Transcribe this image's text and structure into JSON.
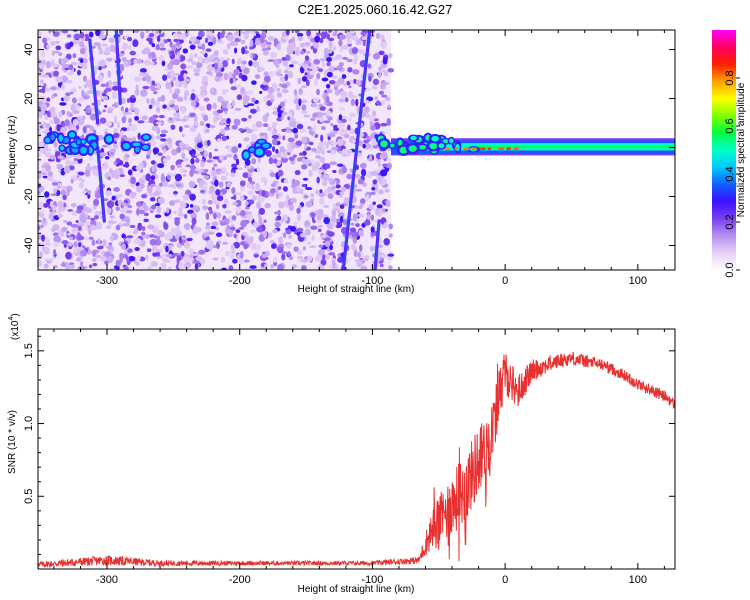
{
  "figure": {
    "title": "C2E1.2025.060.16.42.G27"
  },
  "colors": {
    "background": "#ffffff",
    "snr_line": "#e83030",
    "colormap": [
      "#ffffff",
      "#e6d0f6",
      "#b68ff0",
      "#7a3ff0",
      "#3a10ff",
      "#1060ff",
      "#00c8ff",
      "#00ffc8",
      "#00ff40",
      "#80ff00",
      "#ffff00",
      "#ffa000",
      "#ff2000",
      "#ff0060",
      "#ff00ff"
    ]
  },
  "chart_data": [
    {
      "type": "heatmap",
      "xlabel": "Height of straight line (km)",
      "ylabel": "Frequency (Hz)",
      "xlim": [
        -352,
        128
      ],
      "ylim": [
        -50,
        48
      ],
      "xticks": [
        -300,
        -200,
        -100,
        0,
        100
      ],
      "xtick_labels": [
        "-300",
        "-200",
        "-100",
        "0",
        "100"
      ],
      "yticks": [
        -40,
        -20,
        0,
        20,
        40
      ],
      "ytick_labels": [
        "-40",
        "-20",
        "0",
        "20",
        "40"
      ],
      "colorbar": {
        "label": "Normalized spectral amplitude",
        "range": [
          0,
          1
        ],
        "ticks": [
          0.0,
          0.2,
          0.4,
          0.6,
          0.8
        ],
        "tick_labels": [
          "0.0",
          "0.2",
          "0.4",
          "0.6",
          "0.8"
        ]
      },
      "noise_region": {
        "x_from": -352,
        "x_to": -86,
        "level": 0.1
      },
      "features": [
        {
          "kind": "carrier_band",
          "x_from": -86,
          "x_to": 128,
          "y_center": 0.3,
          "y_halfwidth": 2.5,
          "amplitude": 0.55
        },
        {
          "kind": "mirror_line",
          "x1": -313,
          "y1": 44,
          "x2": -307,
          "y2": 10,
          "amplitude": 0.25
        },
        {
          "kind": "mirror_line",
          "x1": -307,
          "y1": 0,
          "x2": -302,
          "y2": -30,
          "amplitude": 0.25
        },
        {
          "kind": "mirror_line",
          "x1": -293,
          "y1": 48,
          "x2": -290,
          "y2": 18,
          "amplitude": 0.25
        },
        {
          "kind": "mirror_line",
          "x1": -102,
          "y1": 48,
          "x2": -122,
          "y2": -50,
          "amplitude": 0.25
        },
        {
          "kind": "mirror_line",
          "x1": -95,
          "y1": -30,
          "x2": -98,
          "y2": -50,
          "amplitude": 0.25
        },
        {
          "kind": "blob_cluster",
          "x_from": -350,
          "x_to": -270,
          "y_center": 2,
          "y_halfwidth": 4,
          "amplitude": 0.45
        },
        {
          "kind": "blob_cluster",
          "x_from": -196,
          "x_to": -176,
          "y_center": 0,
          "y_halfwidth": 4,
          "amplitude": 0.45
        },
        {
          "kind": "blob_cluster",
          "x_from": -95,
          "x_to": -20,
          "y_center": 1,
          "y_halfwidth": 4,
          "amplitude": 0.55
        },
        {
          "kind": "hot_dashes",
          "x_from": -45,
          "x_to": 13,
          "y_center": -0.5,
          "amplitude": 0.8
        }
      ]
    },
    {
      "type": "line",
      "xlabel": "Height of straight line (km)",
      "ylabel": "SNR (10 * v/v)",
      "y_multiplier_label": "(x10",
      "y_multiplier_exponent": "4",
      "y_multiplier_suffix": ")",
      "xlim": [
        -352,
        128
      ],
      "ylim": [
        0,
        16500
      ],
      "xticks": [
        -300,
        -200,
        -100,
        0,
        100
      ],
      "xtick_labels": [
        "-300",
        "-200",
        "-100",
        "0",
        "100"
      ],
      "yticks": [
        5000,
        10000,
        15000
      ],
      "ytick_labels": [
        "0.5",
        "1.0",
        "1.5"
      ],
      "series": [
        {
          "values_description_x": [
            -352,
            -300,
            -260,
            -200,
            -100,
            -65,
            -55,
            -50,
            -40,
            -30,
            -20,
            -12,
            -5,
            0,
            10,
            20,
            30,
            40,
            50,
            60,
            75,
            90,
            100,
            110,
            120,
            128
          ],
          "y": [
            300,
            600,
            400,
            400,
            400,
            600,
            2800,
            3200,
            4500,
            5500,
            7500,
            8500,
            12000,
            13500,
            12200,
            13600,
            14000,
            14300,
            14500,
            14300,
            14000,
            13300,
            12700,
            12300,
            11900,
            11300
          ],
          "spread": [
            200,
            350,
            200,
            150,
            150,
            250,
            1400,
            1800,
            2200,
            2400,
            2500,
            2000,
            1800,
            1500,
            1200,
            800,
            600,
            500,
            500,
            450,
            400,
            400,
            400,
            400,
            400,
            400
          ]
        }
      ]
    }
  ]
}
